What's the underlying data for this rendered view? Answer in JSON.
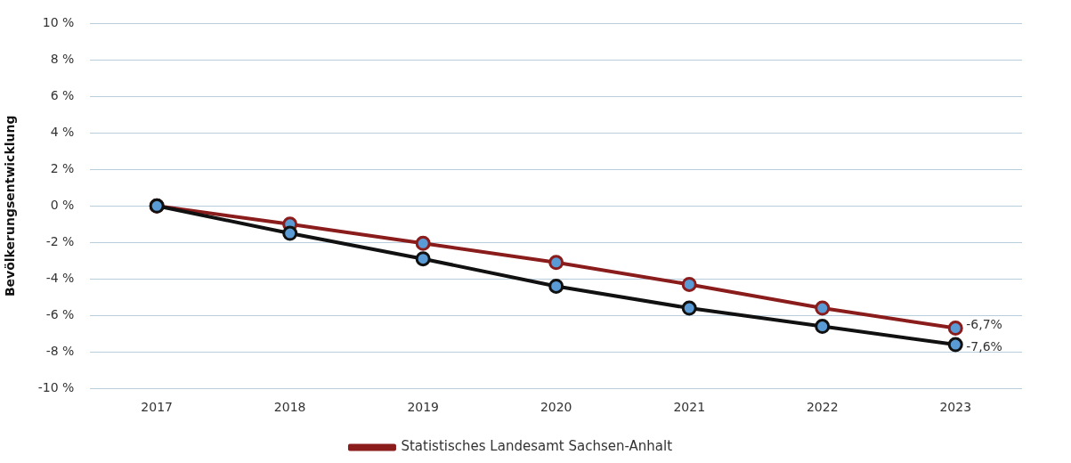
{
  "chart_data": {
    "type": "line",
    "ylabel": "Bevölkerungsentwicklung",
    "categories": [
      "2017",
      "2018",
      "2019",
      "2020",
      "2021",
      "2022",
      "2023"
    ],
    "series": [
      {
        "name": "Statistisches Landesamt Sachsen-Anhalt",
        "color": "#8b1c1c",
        "values": [
          0,
          -1.0,
          -2.05,
          -3.1,
          -4.3,
          -5.6,
          -6.7
        ],
        "value_labels": [
          null,
          null,
          null,
          null,
          null,
          null,
          "-6,7%"
        ]
      },
      {
        "color": "#111111",
        "values": [
          0,
          -1.5,
          -2.9,
          -4.4,
          -5.6,
          -6.6,
          -7.6
        ],
        "value_labels": [
          null,
          null,
          null,
          null,
          null,
          null,
          "-7,6%"
        ]
      }
    ],
    "ylim": [
      -10,
      10
    ],
    "yticks": [
      {
        "value": -10,
        "label": "-10 %"
      },
      {
        "value": -8,
        "label": "-8 %"
      },
      {
        "value": -6,
        "label": "-6 %"
      },
      {
        "value": -4,
        "label": "-4 %"
      },
      {
        "value": -2,
        "label": "-2 %"
      },
      {
        "value": 0,
        "label": "0 %"
      },
      {
        "value": 2,
        "label": "2 %"
      },
      {
        "value": 4,
        "label": "4 %"
      },
      {
        "value": 6,
        "label": "6 %"
      },
      {
        "value": 8,
        "label": "8 %"
      },
      {
        "value": 10,
        "label": "10 %"
      }
    ],
    "grid": "y",
    "legend": "bottom",
    "marker": "circle",
    "line_style": "solid"
  }
}
